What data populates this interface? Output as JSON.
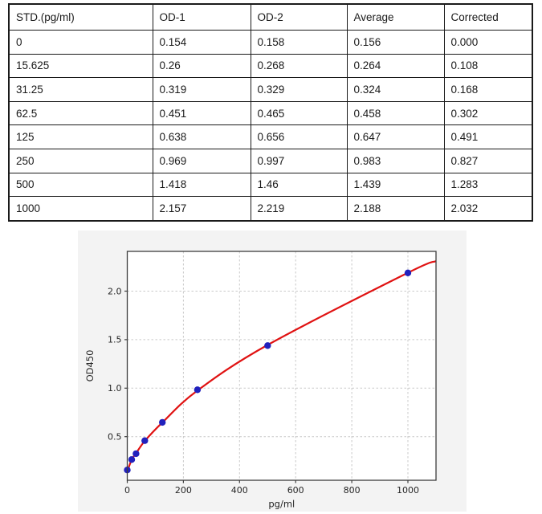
{
  "document": {
    "background": "#ffffff"
  },
  "standards_table": {
    "headers": [
      "STD.(pg/ml)",
      "OD-1",
      "OD-2",
      "Average",
      "Corrected"
    ],
    "rows": [
      [
        "0",
        "0.154",
        "0.158",
        "0.156",
        "0.000"
      ],
      [
        "15.625",
        "0.26",
        "0.268",
        "0.264",
        "0.108"
      ],
      [
        "31.25",
        "0.319",
        "0.329",
        "0.324",
        "0.168"
      ],
      [
        "62.5",
        "0.451",
        "0.465",
        "0.458",
        "0.302"
      ],
      [
        "125",
        "0.638",
        "0.656",
        "0.647",
        "0.491"
      ],
      [
        "250",
        "0.969",
        "0.997",
        "0.983",
        "0.827"
      ],
      [
        "500",
        "1.418",
        "1.46",
        "1.439",
        "1.283"
      ],
      [
        "1000",
        "2.157",
        "2.219",
        "2.188",
        "2.032"
      ]
    ]
  },
  "chart_data": {
    "type": "scatter",
    "title": "",
    "xlabel": "pg/ml",
    "ylabel": "OD450",
    "xlim": [
      0,
      1100
    ],
    "ylim": [
      0.05,
      2.41
    ],
    "xticks": [
      0,
      200,
      400,
      600,
      800,
      1000
    ],
    "yticks": [
      0.5,
      1.0,
      1.5,
      2.0
    ],
    "grid": {
      "show": true,
      "style": "dashed",
      "color": "#c9c9c9"
    },
    "legend_position": "none",
    "figure_bg": "#f3f3f3",
    "plot_bg": "#ffffff",
    "spine_color": "#3d3d3d",
    "series": [
      {
        "name": "standard-points",
        "type": "scatter",
        "marker": "circle",
        "color": "#2121bd",
        "x": [
          0,
          15.625,
          31.25,
          62.5,
          125,
          250,
          500,
          1000
        ],
        "y": [
          0.156,
          0.264,
          0.324,
          0.458,
          0.647,
          0.983,
          1.439,
          2.188
        ]
      },
      {
        "name": "fitted-curve",
        "type": "line",
        "color": "#e01212",
        "x": [
          0,
          15.625,
          31.25,
          62.5,
          125,
          250,
          500,
          1000,
          1100
        ],
        "y": [
          0.14,
          0.262,
          0.328,
          0.455,
          0.645,
          0.975,
          1.445,
          2.19,
          2.31
        ]
      }
    ]
  }
}
